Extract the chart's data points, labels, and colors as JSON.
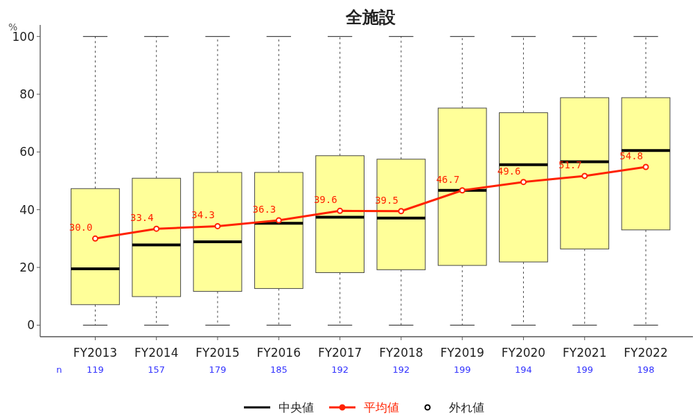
{
  "chart_data": {
    "type": "box",
    "title": "全施設",
    "ylabel": "%",
    "categories": [
      "FY2013",
      "FY2014",
      "FY2015",
      "FY2016",
      "FY2017",
      "FY2018",
      "FY2019",
      "FY2020",
      "FY2021",
      "FY2022"
    ],
    "ylim": [
      -4,
      104
    ],
    "yticks": [
      0,
      20,
      40,
      60,
      80,
      100
    ],
    "grid": false,
    "legend": "bottom",
    "series": [
      {
        "name": "中央値",
        "type": "box",
        "color": "#ffff99",
        "boxes": [
          {
            "low": 0,
            "q1": 7.1,
            "median": 19.5,
            "q3": 47.3,
            "high": 100
          },
          {
            "low": 0,
            "q1": 9.9,
            "median": 27.8,
            "q3": 50.9,
            "high": 100
          },
          {
            "low": 0,
            "q1": 11.7,
            "median": 28.9,
            "q3": 52.9,
            "high": 100
          },
          {
            "low": 0,
            "q1": 12.7,
            "median": 35.3,
            "q3": 52.9,
            "high": 100
          },
          {
            "low": 0,
            "q1": 18.2,
            "median": 37.4,
            "q3": 58.7,
            "high": 100
          },
          {
            "low": 0,
            "q1": 19.2,
            "median": 37.1,
            "q3": 57.5,
            "high": 100
          },
          {
            "low": 0,
            "q1": 20.7,
            "median": 46.7,
            "q3": 75.2,
            "high": 100
          },
          {
            "low": 0,
            "q1": 21.9,
            "median": 55.6,
            "q3": 73.6,
            "high": 100
          },
          {
            "low": 0,
            "q1": 26.4,
            "median": 56.6,
            "q3": 78.8,
            "high": 100
          },
          {
            "low": 0,
            "q1": 33.0,
            "median": 60.5,
            "q3": 78.8,
            "high": 100
          }
        ]
      },
      {
        "name": "平均値",
        "type": "line",
        "color": "#ff2200",
        "marker": "circle",
        "values": [
          30.0,
          33.4,
          34.3,
          36.3,
          39.6,
          39.5,
          46.7,
          49.6,
          51.7,
          54.8
        ],
        "value_labels": [
          "30.0",
          "33.4",
          "34.3",
          "36.3",
          "39.6",
          "39.5",
          "46.7",
          "49.6",
          "51.7",
          "54.8"
        ]
      },
      {
        "name": "外れ値",
        "type": "scatter",
        "color": "#000000",
        "marker": "circle",
        "values": [
          null,
          null,
          null,
          null,
          null,
          null,
          null,
          null,
          null,
          null
        ]
      }
    ],
    "annotations": [
      "n",
      "119",
      "157",
      "179",
      "185",
      "192",
      "192",
      "199",
      "194",
      "199",
      "198"
    ]
  }
}
